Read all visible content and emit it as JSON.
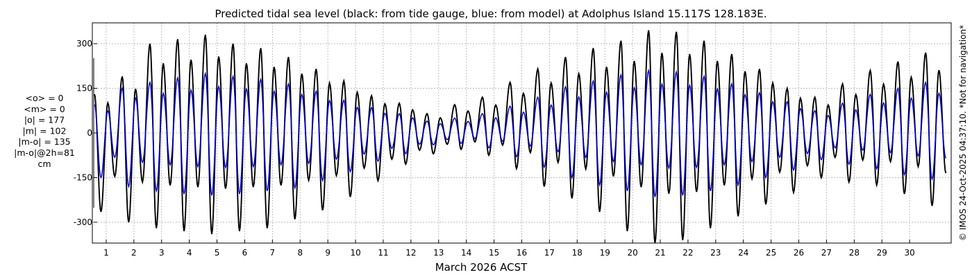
{
  "chart_data": {
    "type": "line",
    "title": "Predicted tidal sea level (black: from tide gauge, blue: from model) at Adolphus Island 15.117S 128.183E.",
    "xlabel": "March 2026 ACST",
    "ylabel": "",
    "credit": "© IMOS 24-Oct-2025 04:37:10. *Not for navigation*",
    "xlim": [
      0,
      31
    ],
    "ylim": [
      -370,
      370
    ],
    "x_ticks": [
      1,
      2,
      3,
      4,
      5,
      6,
      7,
      8,
      9,
      10,
      11,
      12,
      13,
      14,
      15,
      16,
      17,
      18,
      19,
      20,
      21,
      22,
      23,
      24,
      25,
      26,
      27,
      28,
      29,
      30
    ],
    "y_ticks": [
      -300,
      -150,
      0,
      150,
      300
    ],
    "grid": true,
    "colors": {
      "observed": "#000000",
      "model": "#0000dd",
      "grid": "#b0b0b0"
    },
    "series": [
      {
        "name": "black: from tide gauge",
        "color": "#000000",
        "x_start": 0.04,
        "x_step": 1,
        "high_water": [
          130,
          190,
          300,
          315,
          330,
          300,
          285,
          255,
          215,
          175,
          125,
          100,
          65,
          95,
          120,
          170,
          215,
          255,
          285,
          310,
          345,
          340,
          310,
          265,
          215,
          150,
          120,
          165,
          210,
          240,
          270
        ],
        "low_water": [
          -265,
          -300,
          -320,
          -330,
          -340,
          -330,
          -320,
          -290,
          -260,
          -215,
          -160,
          -105,
          -70,
          -55,
          -75,
          -120,
          -180,
          -220,
          -265,
          -330,
          -370,
          -360,
          -320,
          -280,
          -240,
          -200,
          -150,
          -165,
          -175,
          -205,
          -245
        ]
      },
      {
        "name": "blue: from model",
        "color": "#0000dd",
        "x_start": 0.04,
        "x_step": 1,
        "high_water": [
          95,
          150,
          170,
          185,
          200,
          190,
          180,
          165,
          140,
          110,
          85,
          65,
          40,
          50,
          65,
          90,
          120,
          155,
          175,
          195,
          210,
          205,
          190,
          165,
          135,
          105,
          75,
          100,
          130,
          150,
          170
        ],
        "low_water": [
          -150,
          -180,
          -195,
          -205,
          -210,
          -205,
          -195,
          -185,
          -160,
          -130,
          -95,
          -70,
          -40,
          -35,
          -50,
          -80,
          -115,
          -150,
          -175,
          -195,
          -215,
          -210,
          -195,
          -175,
          -150,
          -125,
          -90,
          -105,
          -120,
          -140,
          -155
        ]
      }
    ],
    "stats": [
      "<o> = 0",
      "<m> = 0",
      "|o| = 177",
      "|m| = 102",
      "|m-o| = 135",
      "|m-o|@2h=81",
      "cm"
    ]
  }
}
